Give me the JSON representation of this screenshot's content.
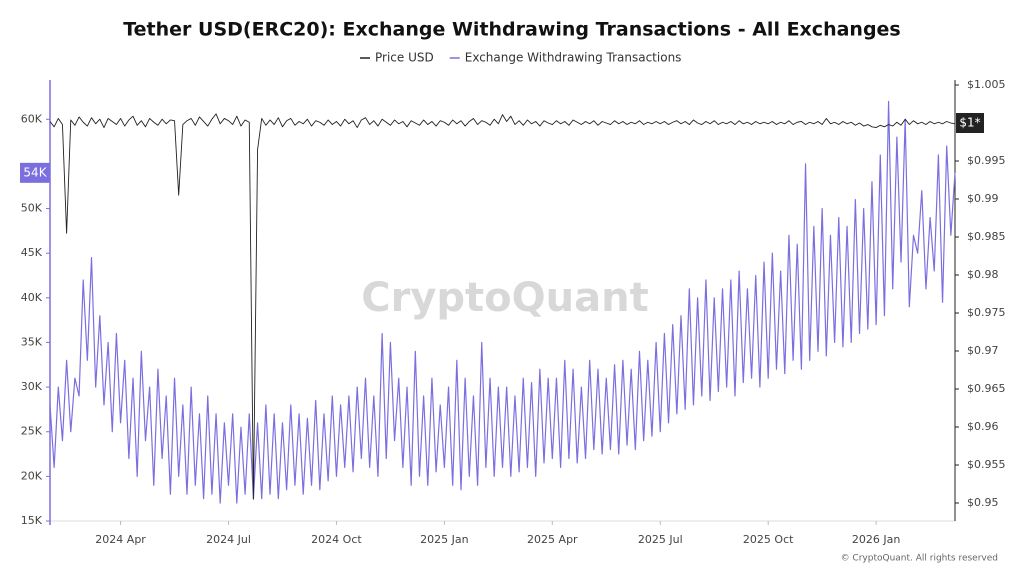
{
  "chart_data": {
    "type": "line",
    "title": "Tether USD(ERC20): Exchange Withdrawing Transactions - All Exchanges",
    "watermark": "CryptoQuant",
    "footer": "© CryptoQuant. All rights reserved",
    "categories": [
      null,
      null,
      null,
      null,
      null,
      null,
      null,
      null,
      null,
      null,
      null,
      null,
      null,
      null,
      null,
      null,
      null,
      "2024 Apr",
      null,
      null,
      null,
      null,
      null,
      null,
      null,
      null,
      null,
      null,
      null,
      null,
      null,
      null,
      null,
      null,
      null,
      null,
      null,
      null,
      null,
      null,
      null,
      null,
      null,
      "2024 Jul",
      null,
      null,
      null,
      null,
      null,
      null,
      null,
      null,
      null,
      null,
      null,
      null,
      null,
      null,
      null,
      null,
      null,
      null,
      null,
      null,
      null,
      null,
      null,
      null,
      null,
      "2024 Oct",
      null,
      null,
      null,
      null,
      null,
      null,
      null,
      null,
      null,
      null,
      null,
      null,
      null,
      null,
      null,
      null,
      null,
      null,
      null,
      null,
      null,
      null,
      null,
      null,
      null,
      "2025 Jan",
      null,
      null,
      null,
      null,
      null,
      null,
      null,
      null,
      null,
      null,
      null,
      null,
      null,
      null,
      null,
      null,
      null,
      null,
      null,
      null,
      null,
      null,
      null,
      null,
      null,
      "2025 Apr",
      null,
      null,
      null,
      null,
      null,
      null,
      null,
      null,
      null,
      null,
      null,
      null,
      null,
      null,
      null,
      null,
      null,
      null,
      null,
      null,
      null,
      null,
      null,
      null,
      null,
      "2025 Jul",
      null,
      null,
      null,
      null,
      null,
      null,
      null,
      null,
      null,
      null,
      null,
      null,
      null,
      null,
      null,
      null,
      null,
      null,
      null,
      null,
      null,
      null,
      null,
      null,
      null,
      "2025 Oct",
      null,
      null,
      null,
      null,
      null,
      null,
      null,
      null,
      null,
      null,
      null,
      null,
      null,
      null,
      null,
      null,
      null,
      null,
      null,
      null,
      null,
      null,
      null,
      null,
      null,
      "2026 Jan",
      null,
      null,
      null,
      null,
      null,
      null,
      null,
      null,
      null,
      null,
      null,
      null,
      null,
      null,
      null,
      null,
      null,
      null,
      null
    ],
    "series": [
      {
        "name": "Price USD",
        "color": "#222222",
        "axis": "y2",
        "values": [
          1.0002,
          0.9995,
          1.0006,
          0.9998,
          0.9855,
          1.0004,
          0.9997,
          1.0008,
          1.0001,
          0.9996,
          1.0007,
          0.9999,
          1.0005,
          0.9994,
          1.0006,
          1.0002,
          0.9998,
          1.0006,
          0.9996,
          1.0004,
          1.0009,
          0.9997,
          1.0003,
          0.9995,
          1.0006,
          1.0001,
          0.9997,
          1.0005,
          0.9999,
          1.0004,
          1.0003,
          0.9905,
          0.9998,
          1.0003,
          1.0006,
          0.9997,
          1.0008,
          1.0002,
          0.9996,
          1.0005,
          1.0012,
          0.9999,
          1.0006,
          1.0003,
          0.9998,
          1.0009,
          0.9996,
          1.0004,
          1.0001,
          0.9505,
          0.9965,
          1.0006,
          0.9997,
          1.0004,
          0.9998,
          1.0007,
          0.9995,
          1.0003,
          1.0006,
          0.9997,
          1.0002,
          0.9999,
          1.0005,
          0.9996,
          1.0003,
          1.0001,
          0.9997,
          1.0004,
          0.9998,
          1.0002,
          0.9996,
          1.0005,
          0.9999,
          1.0003,
          0.9994,
          1.0004,
          1.0007,
          0.9998,
          1.0003,
          0.9996,
          1.0005,
          1.0001,
          0.9997,
          1.0004,
          0.9999,
          1.0002,
          0.9995,
          1.0003,
          1.0,
          0.9997,
          1.0004,
          0.9998,
          1.0002,
          0.9996,
          1.0003,
          1.0001,
          0.9997,
          1.0004,
          0.9999,
          1.0003,
          0.9996,
          1.0002,
          1.0006,
          0.9998,
          1.0003,
          1.0001,
          0.9997,
          1.0005,
          0.9999,
          1.0011,
          1.0002,
          1.0009,
          0.9998,
          1.0003,
          0.9997,
          1.0004,
          0.9999,
          1.0002,
          0.9996,
          1.0003,
          1.0,
          0.9998,
          1.0003,
          0.9999,
          1.0002,
          0.9997,
          1.0004,
          1.0001,
          0.9998,
          1.0002,
          0.9999,
          1.0003,
          0.9997,
          1.0002,
          1.0,
          0.9998,
          1.0003,
          0.9999,
          1.0002,
          0.9998,
          1.0001,
          0.9999,
          1.0003,
          0.9998,
          1.0001,
          0.9999,
          1.0002,
          0.9999,
          1.0002,
          0.9998,
          1.0001,
          1.0003,
          0.9999,
          1.0002,
          0.9998,
          1.0004,
          1.0,
          0.9998,
          1.0002,
          0.9999,
          1.0003,
          0.9998,
          1.0001,
          0.9999,
          1.0002,
          0.9998,
          1.0003,
          0.9999,
          1.0001,
          0.9998,
          1.0002,
          0.9999,
          1.0001,
          0.9999,
          1.0002,
          0.9998,
          1.0001,
          0.9999,
          1.0003,
          0.9998,
          1.0001,
          1.0002,
          0.9998,
          1.0001,
          0.9999,
          1.0002,
          0.9998,
          1.0006,
          0.9999,
          1.0001,
          0.9998,
          1.0002,
          0.9999,
          1.0001,
          0.9997,
          1.0,
          0.9996,
          0.9998,
          0.9995,
          0.9994,
          0.9997,
          0.9995,
          0.9998,
          0.9996,
          1.0001,
          0.9997,
          1.0005,
          0.9998,
          1.0003,
          0.9999,
          1.0001,
          0.9998,
          1.0002,
          0.9999,
          1.0001,
          0.9999,
          1.0002,
          1.0,
          0.9999
        ]
      },
      {
        "name": "Exchange Withdrawing Transactions",
        "color": "#7b6fe0",
        "axis": "y",
        "values": [
          28000,
          21000,
          30000,
          24000,
          33000,
          25000,
          31000,
          29000,
          42000,
          33000,
          44500,
          30000,
          38000,
          28000,
          35000,
          25000,
          36000,
          26000,
          33000,
          22000,
          31000,
          20000,
          34000,
          24000,
          30000,
          19000,
          32000,
          22000,
          29000,
          18000,
          31000,
          20000,
          28000,
          18000,
          30000,
          19000,
          27000,
          17500,
          29000,
          18000,
          27000,
          17000,
          26000,
          19000,
          27000,
          17000,
          25500,
          18000,
          27000,
          17500,
          26000,
          17500,
          28000,
          18000,
          27000,
          17500,
          26000,
          18500,
          28000,
          19000,
          27000,
          18000,
          26500,
          19000,
          28500,
          18500,
          27000,
          19500,
          29000,
          20000,
          28000,
          21000,
          29000,
          20500,
          30000,
          22000,
          31000,
          21000,
          29000,
          20000,
          36000,
          22000,
          35000,
          24000,
          31000,
          21000,
          30000,
          19000,
          34000,
          20000,
          29000,
          19000,
          31000,
          20500,
          28000,
          21000,
          30000,
          19000,
          33000,
          18500,
          31000,
          20000,
          29000,
          19000,
          35000,
          21000,
          31000,
          20000,
          30000,
          21000,
          30000,
          20000,
          29000,
          20500,
          31000,
          21000,
          30500,
          20000,
          32000,
          21500,
          31000,
          22000,
          31000,
          21000,
          33000,
          22000,
          32000,
          21500,
          30000,
          22000,
          33000,
          23000,
          32000,
          22500,
          31000,
          23000,
          32500,
          22500,
          33000,
          23500,
          32000,
          23000,
          34000,
          24000,
          33000,
          24500,
          35000,
          25000,
          36000,
          26000,
          37000,
          27000,
          38000,
          27500,
          41000,
          28000,
          40000,
          29000,
          42000,
          28500,
          40000,
          29500,
          41000,
          30000,
          42000,
          29000,
          43000,
          30500,
          41000,
          31000,
          42500,
          30000,
          44000,
          31000,
          45000,
          32000,
          43000,
          31500,
          47000,
          33000,
          46000,
          32000,
          55000,
          33000,
          48000,
          34000,
          50000,
          33500,
          47000,
          35000,
          49000,
          34500,
          48000,
          35000,
          51000,
          36000,
          50000,
          36500,
          53000,
          37000,
          56000,
          38000,
          62000,
          41000,
          58000,
          44000,
          60000,
          39000,
          47000,
          45000,
          52000,
          41000,
          49000,
          43000,
          56000,
          39500,
          57000,
          47000,
          54000
        ]
      }
    ],
    "ylim": [
      15000,
      64400
    ],
    "yticks": [
      {
        "value": 15000,
        "label": "15K"
      },
      {
        "value": 20000,
        "label": "20K"
      },
      {
        "value": 25000,
        "label": "25K"
      },
      {
        "value": 30000,
        "label": "30K"
      },
      {
        "value": 35000,
        "label": "35K"
      },
      {
        "value": 40000,
        "label": "40K"
      },
      {
        "value": 45000,
        "label": "45K"
      },
      {
        "value": 50000,
        "label": "50K"
      },
      {
        "value": 60000,
        "label": "60K"
      }
    ],
    "y2lim": [
      0.94763,
      1.00566
    ],
    "y2ticks": [
      {
        "value": 0.95,
        "label": "$0.95"
      },
      {
        "value": 0.955,
        "label": "$0.955"
      },
      {
        "value": 0.96,
        "label": "$0.96"
      },
      {
        "value": 0.965,
        "label": "$0.965"
      },
      {
        "value": 0.97,
        "label": "$0.97"
      },
      {
        "value": 0.975,
        "label": "$0.975"
      },
      {
        "value": 0.98,
        "label": "$0.98"
      },
      {
        "value": 0.985,
        "label": "$0.985"
      },
      {
        "value": 0.99,
        "label": "$0.99"
      },
      {
        "value": 0.995,
        "label": "$0.995"
      },
      {
        "value": 1.005,
        "label": "$1.005"
      }
    ],
    "current_labels": [
      {
        "value": 54000,
        "label": "54K",
        "axis": "y"
      },
      {
        "value": 1,
        "label": "$1*",
        "axis": "y2"
      }
    ],
    "grid": false,
    "legend": "top"
  }
}
